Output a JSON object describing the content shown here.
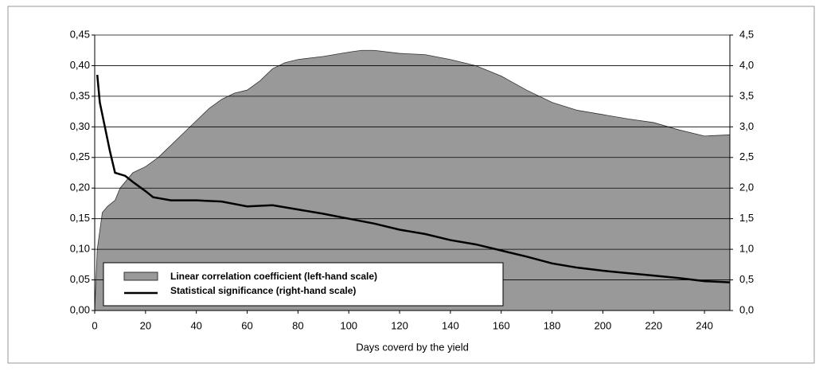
{
  "chart_data": {
    "type": "area-line",
    "x_label": "Days coverd by the yield",
    "xlim": [
      0,
      250
    ],
    "xticks": [
      0,
      20,
      40,
      60,
      80,
      100,
      120,
      140,
      160,
      180,
      200,
      220,
      240
    ],
    "ylim": [
      0,
      0.45
    ],
    "yticks": [
      {
        "value": 0,
        "label": "0,00"
      },
      {
        "value": 0.05,
        "label": "0,05"
      },
      {
        "value": 0.1,
        "label": "0,10"
      },
      {
        "value": 0.15,
        "label": "0,15"
      },
      {
        "value": 0.2,
        "label": "0,20"
      },
      {
        "value": 0.25,
        "label": "0,25"
      },
      {
        "value": 0.3,
        "label": "0,30"
      },
      {
        "value": 0.35,
        "label": "0,35"
      },
      {
        "value": 0.4,
        "label": "0,40"
      },
      {
        "value": 0.45,
        "label": "0,45"
      }
    ],
    "y2lim": [
      0,
      4.5
    ],
    "y2ticks": [
      {
        "value": 0,
        "label": "0,0"
      },
      {
        "value": 0.5,
        "label": "0,5"
      },
      {
        "value": 1,
        "label": "1,0"
      },
      {
        "value": 1.5,
        "label": "1,5"
      },
      {
        "value": 2,
        "label": "2,0"
      },
      {
        "value": 2.5,
        "label": "2,5"
      },
      {
        "value": 3,
        "label": "3,0"
      },
      {
        "value": 3.5,
        "label": "3,5"
      },
      {
        "value": 4,
        "label": "4,0"
      },
      {
        "value": 4.5,
        "label": "4,5"
      }
    ],
    "grid": true,
    "legend": "lower left",
    "series": [
      {
        "name": "Linear correlation coefficient (left-hand scale)",
        "type": "area",
        "color": "#999999",
        "x": [
          0,
          1,
          3,
          5,
          8,
          10,
          15,
          20,
          25,
          30,
          35,
          40,
          45,
          50,
          55,
          60,
          65,
          70,
          75,
          80,
          90,
          100,
          105,
          110,
          120,
          130,
          140,
          150,
          160,
          170,
          180,
          190,
          200,
          210,
          220,
          230,
          240,
          250
        ],
        "values": [
          0,
          0.1,
          0.16,
          0.17,
          0.18,
          0.2,
          0.225,
          0.235,
          0.25,
          0.27,
          0.29,
          0.31,
          0.33,
          0.345,
          0.355,
          0.36,
          0.375,
          0.395,
          0.405,
          0.41,
          0.415,
          0.422,
          0.425,
          0.425,
          0.42,
          0.418,
          0.41,
          0.4,
          0.383,
          0.36,
          0.34,
          0.327,
          0.32,
          0.313,
          0.307,
          0.295,
          0.285,
          0.287
        ]
      },
      {
        "name": "Statistical significance (right-hand scale)",
        "type": "line",
        "axis": "y2",
        "color": "#000000",
        "x": [
          1,
          2,
          4,
          6,
          8,
          12,
          15,
          20,
          23,
          30,
          40,
          50,
          60,
          70,
          80,
          90,
          100,
          110,
          120,
          130,
          140,
          150,
          160,
          170,
          180,
          190,
          200,
          210,
          220,
          230,
          240,
          250
        ],
        "values": [
          3.85,
          3.4,
          3.0,
          2.6,
          2.25,
          2.2,
          2.1,
          1.95,
          1.85,
          1.8,
          1.8,
          1.78,
          1.7,
          1.72,
          1.65,
          1.58,
          1.5,
          1.42,
          1.32,
          1.25,
          1.15,
          1.08,
          0.98,
          0.88,
          0.77,
          0.7,
          0.65,
          0.61,
          0.57,
          0.53,
          0.48,
          0.46
        ]
      }
    ]
  }
}
